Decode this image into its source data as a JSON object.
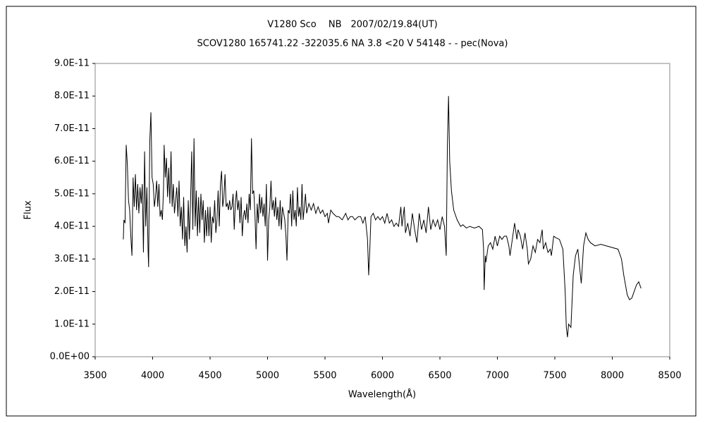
{
  "chart_data": {
    "type": "line",
    "title": "V1280 Sco　 NB　2007/02/19.84(UT)",
    "subtitle": "SCOV1280 165741.22 -322035.6 NA 3.8 <20 V 54148 - - pec(Nova)",
    "xlabel": "Wavelength(Å)",
    "ylabel": "Flux",
    "color": "#000000",
    "xlim": [
      3500,
      8500
    ],
    "xticks": [
      3500,
      4000,
      4500,
      5000,
      5500,
      6000,
      6500,
      7000,
      7500,
      8000,
      8500
    ],
    "ylim": [
      0,
      9e-11
    ],
    "yticks": [
      {
        "value": 0,
        "label": "0.0E+00"
      },
      {
        "value": 1e-11,
        "label": "1.0E-11"
      },
      {
        "value": 2e-11,
        "label": "2.0E-11"
      },
      {
        "value": 3e-11,
        "label": "3.0E-11"
      },
      {
        "value": 4e-11,
        "label": "4.0E-11"
      },
      {
        "value": 5e-11,
        "label": "5.0E-11"
      },
      {
        "value": 6e-11,
        "label": "6.0E-11"
      },
      {
        "value": 7e-11,
        "label": "7.0E-11"
      },
      {
        "value": 8e-11,
        "label": "8.0E-11"
      },
      {
        "value": 9e-11,
        "label": "9.0E-11"
      }
    ],
    "x": [
      3745,
      3750,
      3760,
      3770,
      3780,
      3790,
      3800,
      3810,
      3820,
      3830,
      3840,
      3850,
      3860,
      3870,
      3880,
      3890,
      3900,
      3910,
      3920,
      3930,
      3940,
      3950,
      3960,
      3965,
      3975,
      3985,
      3995,
      4005,
      4015,
      4025,
      4035,
      4045,
      4055,
      4065,
      4075,
      4085,
      4095,
      4100,
      4110,
      4120,
      4130,
      4140,
      4150,
      4160,
      4170,
      4180,
      4190,
      4200,
      4210,
      4220,
      4230,
      4240,
      4250,
      4260,
      4270,
      4280,
      4290,
      4300,
      4310,
      4320,
      4330,
      4340,
      4350,
      4360,
      4370,
      4380,
      4390,
      4400,
      4410,
      4420,
      4430,
      4440,
      4450,
      4460,
      4470,
      4480,
      4490,
      4500,
      4510,
      4520,
      4530,
      4540,
      4550,
      4560,
      4570,
      4580,
      4590,
      4600,
      4610,
      4620,
      4630,
      4640,
      4650,
      4660,
      4670,
      4680,
      4690,
      4700,
      4710,
      4720,
      4730,
      4740,
      4750,
      4760,
      4770,
      4780,
      4790,
      4800,
      4810,
      4820,
      4830,
      4840,
      4850,
      4860,
      4870,
      4880,
      4890,
      4900,
      4910,
      4920,
      4930,
      4940,
      4950,
      4960,
      4970,
      4980,
      4990,
      5000,
      5010,
      5020,
      5030,
      5040,
      5050,
      5060,
      5070,
      5080,
      5090,
      5100,
      5110,
      5120,
      5130,
      5150,
      5160,
      5169,
      5180,
      5190,
      5200,
      5210,
      5220,
      5230,
      5240,
      5250,
      5260,
      5270,
      5280,
      5290,
      5300,
      5310,
      5320,
      5330,
      5340,
      5360,
      5380,
      5400,
      5420,
      5440,
      5460,
      5480,
      5500,
      5520,
      5530,
      5550,
      5570,
      5600,
      5620,
      5650,
      5680,
      5700,
      5720,
      5740,
      5760,
      5790,
      5810,
      5830,
      5850,
      5870,
      5880,
      5890,
      5900,
      5920,
      5940,
      5960,
      5980,
      6000,
      6020,
      6040,
      6060,
      6080,
      6100,
      6120,
      6140,
      6160,
      6170,
      6190,
      6200,
      6220,
      6240,
      6260,
      6280,
      6300,
      6320,
      6340,
      6360,
      6380,
      6400,
      6420,
      6440,
      6460,
      6480,
      6500,
      6520,
      6540,
      6555,
      6565,
      6575,
      6585,
      6600,
      6620,
      6650,
      6680,
      6700,
      6730,
      6760,
      6800,
      6840,
      6870,
      6880,
      6885,
      6895,
      6900,
      6920,
      6940,
      6960,
      6980,
      7000,
      7020,
      7040,
      7060,
      7080,
      7100,
      7110,
      7130,
      7150,
      7170,
      7180,
      7200,
      7220,
      7240,
      7260,
      7270,
      7290,
      7310,
      7330,
      7350,
      7370,
      7390,
      7400,
      7420,
      7440,
      7460,
      7470,
      7490,
      7510,
      7540,
      7570,
      7590,
      7600,
      7610,
      7620,
      7640,
      7660,
      7680,
      7700,
      7720,
      7730,
      7750,
      7770,
      7790,
      7810,
      7850,
      7900,
      7950,
      8000,
      8050,
      8080,
      8100,
      8130,
      8150,
      8170,
      8190,
      8210,
      8230,
      8250
    ],
    "values": [
      3.6e-11,
      4.2e-11,
      4.1e-11,
      6.5e-11,
      5.9e-11,
      4.8e-11,
      4.5e-11,
      3.7e-11,
      3.1e-11,
      5.5e-11,
      4.6e-11,
      5.6e-11,
      4.5e-11,
      5.3e-11,
      4.4e-11,
      5.2e-11,
      4.7e-11,
      5.3e-11,
      3.2e-11,
      6.3e-11,
      4e-11,
      5.2e-11,
      3.3e-11,
      2.75e-11,
      6.6e-11,
      7.5e-11,
      5.5e-11,
      5.3e-11,
      4.6e-11,
      4.9e-11,
      5.4e-11,
      4.6e-11,
      5.3e-11,
      4.3e-11,
      4.5e-11,
      4.2e-11,
      5.2e-11,
      6.5e-11,
      5.5e-11,
      6.1e-11,
      4.9e-11,
      5.8e-11,
      4.7e-11,
      6.3e-11,
      4.6e-11,
      5.3e-11,
      4.4e-11,
      4.8e-11,
      5.2e-11,
      4.3e-11,
      5.4e-11,
      4e-11,
      4.6e-11,
      3.6e-11,
      4.9e-11,
      3.4e-11,
      4e-11,
      3.2e-11,
      4.8e-11,
      3.6e-11,
      4.8e-11,
      6.3e-11,
      3.9e-11,
      6.7e-11,
      4e-11,
      5.1e-11,
      3.7e-11,
      4.9e-11,
      3.8e-11,
      5e-11,
      4.2e-11,
      4.8e-11,
      3.5e-11,
      4.5e-11,
      3.7e-11,
      4.6e-11,
      3.7e-11,
      4.6e-11,
      3.5e-11,
      4.3e-11,
      4.1e-11,
      4.8e-11,
      3.8e-11,
      4.2e-11,
      5.1e-11,
      4e-11,
      5.3e-11,
      5.7e-11,
      4.6e-11,
      4.9e-11,
      5.6e-11,
      4.6e-11,
      4.7e-11,
      4.5e-11,
      4.8e-11,
      4.5e-11,
      4.6e-11,
      5e-11,
      3.9e-11,
      4.7e-11,
      5.1e-11,
      4.5e-11,
      4.8e-11,
      4.1e-11,
      4.9e-11,
      3.7e-11,
      4.3e-11,
      4.5e-11,
      4.2e-11,
      4.7e-11,
      4.1e-11,
      5e-11,
      4.5e-11,
      6.7e-11,
      5e-11,
      5.1e-11,
      4.4e-11,
      3.3e-11,
      4.7e-11,
      4.1e-11,
      5e-11,
      4.4e-11,
      4.9e-11,
      4.3e-11,
      4.7e-11,
      4e-11,
      5.3e-11,
      2.95e-11,
      4.2e-11,
      4.6e-11,
      5.4e-11,
      4.5e-11,
      4.8e-11,
      4.3e-11,
      4.9e-11,
      4.2e-11,
      4.6e-11,
      4e-11,
      4.8e-11,
      3.9e-11,
      4.6e-11,
      4.2e-11,
      3.7e-11,
      2.95e-11,
      4.5e-11,
      4.4e-11,
      5e-11,
      4e-11,
      5.1e-11,
      4.2e-11,
      4.5e-11,
      4e-11,
      5.2e-11,
      4.3e-11,
      4.6e-11,
      4.2e-11,
      5.3e-11,
      4.2e-11,
      4.6e-11,
      5e-11,
      4.4e-11,
      4.7e-11,
      4.5e-11,
      4.7e-11,
      4.4e-11,
      4.6e-11,
      4.4e-11,
      4.5e-11,
      4.3e-11,
      4.4e-11,
      4.1e-11,
      4.5e-11,
      4.4e-11,
      4.3e-11,
      4.3e-11,
      4.2e-11,
      4.4e-11,
      4.2e-11,
      4.3e-11,
      4.3e-11,
      4.2e-11,
      4.3e-11,
      4.3e-11,
      4.1e-11,
      4.3e-11,
      3.6e-11,
      2.5e-11,
      3.3e-11,
      4.3e-11,
      4.4e-11,
      4.2e-11,
      4.3e-11,
      4.2e-11,
      4.3e-11,
      4.1e-11,
      4.4e-11,
      4.1e-11,
      4.2e-11,
      4e-11,
      4.1e-11,
      4e-11,
      4.6e-11,
      4e-11,
      4.6e-11,
      3.8e-11,
      4.1e-11,
      3.7e-11,
      4.4e-11,
      3.9e-11,
      3.5e-11,
      4.4e-11,
      3.9e-11,
      4.2e-11,
      3.8e-11,
      4.6e-11,
      3.9e-11,
      4.2e-11,
      4e-11,
      4.2e-11,
      3.9e-11,
      4.3e-11,
      4e-11,
      3.1e-11,
      6.5e-11,
      8e-11,
      6e-11,
      5.1e-11,
      4.5e-11,
      4.2e-11,
      4e-11,
      4.05e-11,
      3.95e-11,
      4e-11,
      3.95e-11,
      4e-11,
      3.9e-11,
      3.3e-11,
      2.05e-11,
      3.1e-11,
      2.9e-11,
      3.4e-11,
      3.5e-11,
      3.3e-11,
      3.7e-11,
      3.4e-11,
      3.7e-11,
      3.6e-11,
      3.7e-11,
      3.7e-11,
      3.4e-11,
      3.1e-11,
      3.6e-11,
      4.1e-11,
      3.6e-11,
      3.9e-11,
      3.7e-11,
      3.3e-11,
      3.8e-11,
      3.3e-11,
      2.85e-11,
      3e-11,
      3.4e-11,
      3.2e-11,
      3.6e-11,
      3.5e-11,
      3.9e-11,
      3.3e-11,
      3.5e-11,
      3.2e-11,
      3.3e-11,
      3.1e-11,
      3.7e-11,
      3.65e-11,
      3.6e-11,
      3.3e-11,
      2e-11,
      9e-12,
      6e-12,
      1e-11,
      9e-12,
      2.5e-11,
      3.1e-11,
      3.3e-11,
      2.6e-11,
      2.25e-11,
      3.4e-11,
      3.8e-11,
      3.6e-11,
      3.5e-11,
      3.4e-11,
      3.45e-11,
      3.4e-11,
      3.35e-11,
      3.3e-11,
      3e-11,
      2.5e-11,
      1.9e-11,
      1.75e-11,
      1.8e-11,
      2e-11,
      2.2e-11,
      2.3e-11,
      2.1e-11
    ]
  }
}
